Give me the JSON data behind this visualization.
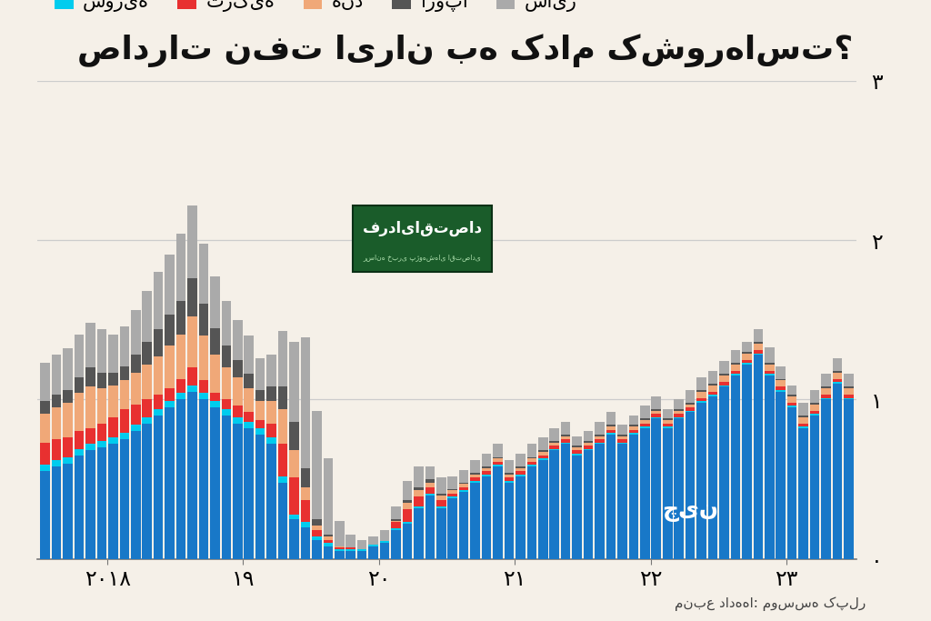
{
  "title": "صادرات نفت ایران به کدام کشورهاست؟",
  "source_label": "منبع داده‌ها: موسسه کپلر",
  "china_label": "چین",
  "legend_labels": [
    "سوریه",
    "ترکیه",
    "هند",
    "اروپا",
    "سایر"
  ],
  "legend_colors": [
    "#00ccee",
    "#e83030",
    "#f0a878",
    "#555555",
    "#aaaaaa"
  ],
  "china_color": "#1878c8",
  "background_color": "#f5f0e8",
  "logo_color": "#1a5c2a",
  "logo_text": "فردایاقتصاد",
  "logo_subtext": "رسانه خبری پژوهشهای اقتصادی",
  "ytick_labels": [
    "۰",
    "۱",
    "۲",
    "۳"
  ],
  "xtick_labels": [
    "۲۰۱۸",
    "۱۹",
    "۲۰",
    "۲۱",
    "۲۲",
    "۲۳"
  ],
  "china": [
    0.55,
    0.58,
    0.6,
    0.65,
    0.68,
    0.7,
    0.72,
    0.75,
    0.8,
    0.85,
    0.9,
    0.95,
    1.0,
    1.05,
    1.0,
    0.95,
    0.9,
    0.85,
    0.82,
    0.78,
    0.72,
    0.48,
    0.25,
    0.2,
    0.12,
    0.08,
    0.05,
    0.05,
    0.05,
    0.08,
    0.1,
    0.18,
    0.22,
    0.32,
    0.4,
    0.32,
    0.38,
    0.42,
    0.48,
    0.52,
    0.58,
    0.48,
    0.52,
    0.58,
    0.62,
    0.68,
    0.72,
    0.65,
    0.68,
    0.72,
    0.78,
    0.72,
    0.78,
    0.82,
    0.88,
    0.82,
    0.88,
    0.92,
    0.98,
    1.02,
    1.08,
    1.15,
    1.22,
    1.28,
    1.15,
    1.05,
    0.95,
    0.82,
    0.9,
    1.0,
    1.1,
    1.0
  ],
  "syria": [
    0.04,
    0.04,
    0.04,
    0.04,
    0.04,
    0.04,
    0.04,
    0.04,
    0.04,
    0.04,
    0.04,
    0.04,
    0.04,
    0.04,
    0.04,
    0.04,
    0.04,
    0.04,
    0.04,
    0.04,
    0.04,
    0.04,
    0.03,
    0.03,
    0.02,
    0.02,
    0.01,
    0.01,
    0.01,
    0.01,
    0.01,
    0.01,
    0.01,
    0.01,
    0.01,
    0.01,
    0.01,
    0.01,
    0.01,
    0.01,
    0.01,
    0.01,
    0.01,
    0.01,
    0.01,
    0.01,
    0.01,
    0.01,
    0.01,
    0.01,
    0.01,
    0.01,
    0.01,
    0.01,
    0.01,
    0.01,
    0.01,
    0.01,
    0.01,
    0.01,
    0.01,
    0.01,
    0.01,
    0.01,
    0.01,
    0.01,
    0.01,
    0.01,
    0.01,
    0.01,
    0.01,
    0.01
  ],
  "turkey": [
    0.14,
    0.13,
    0.12,
    0.11,
    0.1,
    0.11,
    0.13,
    0.15,
    0.13,
    0.11,
    0.09,
    0.08,
    0.09,
    0.11,
    0.08,
    0.05,
    0.06,
    0.07,
    0.06,
    0.05,
    0.09,
    0.2,
    0.23,
    0.14,
    0.04,
    0.02,
    0.01,
    0.01,
    0.0,
    0.0,
    0.0,
    0.04,
    0.08,
    0.06,
    0.04,
    0.04,
    0.02,
    0.02,
    0.02,
    0.02,
    0.02,
    0.02,
    0.02,
    0.02,
    0.02,
    0.02,
    0.02,
    0.02,
    0.02,
    0.02,
    0.02,
    0.02,
    0.02,
    0.02,
    0.02,
    0.02,
    0.02,
    0.02,
    0.02,
    0.02,
    0.02,
    0.02,
    0.02,
    0.02,
    0.02,
    0.02,
    0.02,
    0.02,
    0.02,
    0.02,
    0.02,
    0.02
  ],
  "india": [
    0.18,
    0.2,
    0.22,
    0.24,
    0.26,
    0.22,
    0.2,
    0.18,
    0.2,
    0.22,
    0.24,
    0.27,
    0.28,
    0.32,
    0.28,
    0.24,
    0.2,
    0.18,
    0.15,
    0.12,
    0.14,
    0.22,
    0.17,
    0.08,
    0.03,
    0.02,
    0.01,
    0.0,
    0.0,
    0.0,
    0.0,
    0.01,
    0.04,
    0.04,
    0.03,
    0.03,
    0.02,
    0.02,
    0.02,
    0.02,
    0.02,
    0.02,
    0.02,
    0.02,
    0.02,
    0.02,
    0.02,
    0.02,
    0.02,
    0.02,
    0.02,
    0.02,
    0.02,
    0.02,
    0.02,
    0.02,
    0.02,
    0.02,
    0.04,
    0.04,
    0.04,
    0.04,
    0.04,
    0.04,
    0.04,
    0.04,
    0.04,
    0.04,
    0.04,
    0.04,
    0.04,
    0.04
  ],
  "europe": [
    0.08,
    0.08,
    0.08,
    0.1,
    0.12,
    0.1,
    0.08,
    0.09,
    0.11,
    0.14,
    0.17,
    0.19,
    0.21,
    0.24,
    0.2,
    0.17,
    0.14,
    0.11,
    0.09,
    0.07,
    0.09,
    0.14,
    0.18,
    0.12,
    0.04,
    0.01,
    0.0,
    0.0,
    0.0,
    0.0,
    0.0,
    0.01,
    0.02,
    0.02,
    0.02,
    0.01,
    0.01,
    0.01,
    0.01,
    0.01,
    0.01,
    0.01,
    0.01,
    0.01,
    0.01,
    0.01,
    0.01,
    0.01,
    0.01,
    0.01,
    0.01,
    0.01,
    0.01,
    0.01,
    0.01,
    0.01,
    0.01,
    0.01,
    0.01,
    0.01,
    0.01,
    0.01,
    0.01,
    0.01,
    0.01,
    0.01,
    0.01,
    0.01,
    0.01,
    0.01,
    0.01,
    0.01
  ],
  "other": [
    0.24,
    0.25,
    0.26,
    0.27,
    0.28,
    0.27,
    0.24,
    0.25,
    0.28,
    0.32,
    0.36,
    0.38,
    0.42,
    0.46,
    0.38,
    0.32,
    0.28,
    0.25,
    0.24,
    0.2,
    0.2,
    0.35,
    0.5,
    0.82,
    0.68,
    0.48,
    0.16,
    0.08,
    0.06,
    0.05,
    0.07,
    0.08,
    0.12,
    0.13,
    0.08,
    0.1,
    0.08,
    0.08,
    0.08,
    0.08,
    0.08,
    0.08,
    0.08,
    0.08,
    0.08,
    0.08,
    0.08,
    0.06,
    0.06,
    0.08,
    0.08,
    0.06,
    0.06,
    0.08,
    0.08,
    0.06,
    0.06,
    0.08,
    0.08,
    0.08,
    0.08,
    0.08,
    0.06,
    0.08,
    0.1,
    0.08,
    0.06,
    0.08,
    0.08,
    0.08,
    0.08,
    0.08
  ]
}
